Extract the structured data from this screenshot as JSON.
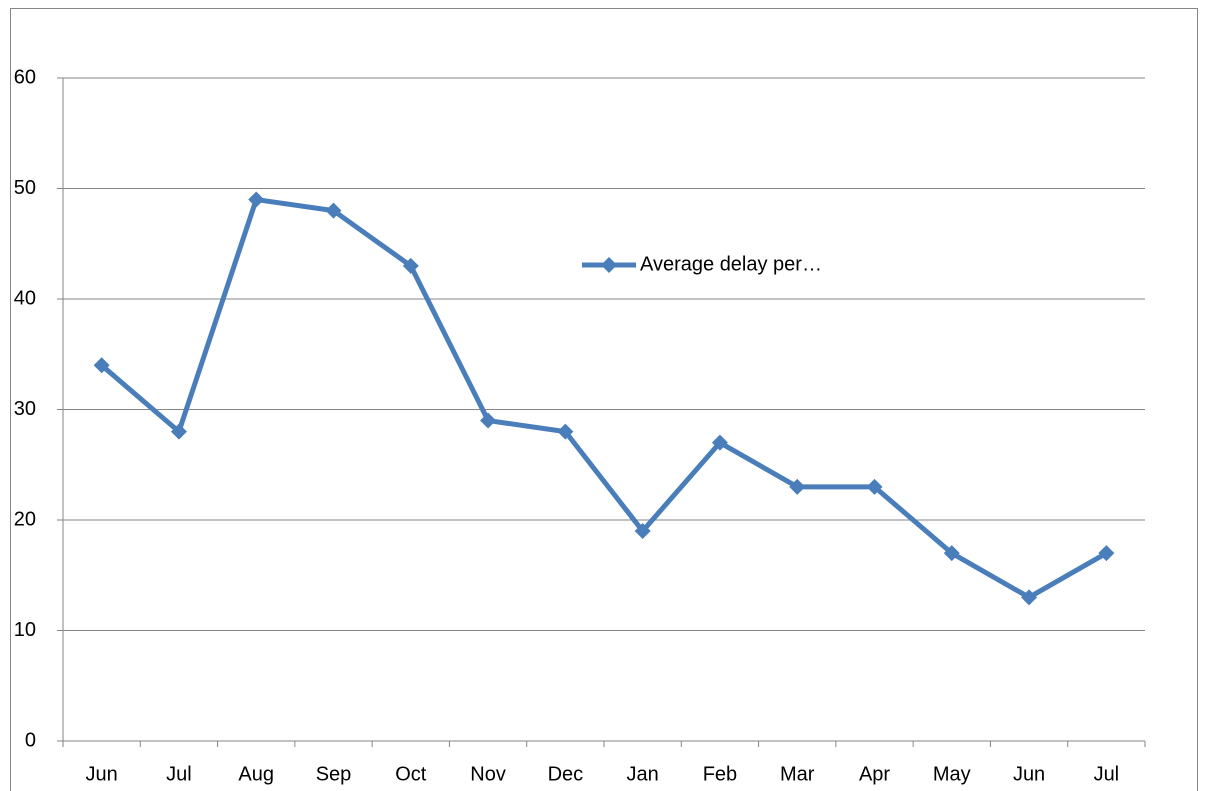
{
  "chart_data": {
    "type": "line",
    "categories": [
      "Jun",
      "Jul",
      "Aug",
      "Sep",
      "Oct",
      "Nov",
      "Dec",
      "Jan",
      "Feb",
      "Mar",
      "Apr",
      "May",
      "Jun",
      "Jul"
    ],
    "series": [
      {
        "name": "Average delay per…",
        "color": "#4a7ebb",
        "values": [
          34,
          28,
          49,
          48,
          43,
          29,
          28,
          19,
          27,
          23,
          23,
          17,
          13,
          17
        ]
      }
    ],
    "ylim": [
      0,
      60
    ],
    "yticks": [
      0,
      10,
      20,
      30,
      40,
      50,
      60
    ],
    "grid": true
  }
}
